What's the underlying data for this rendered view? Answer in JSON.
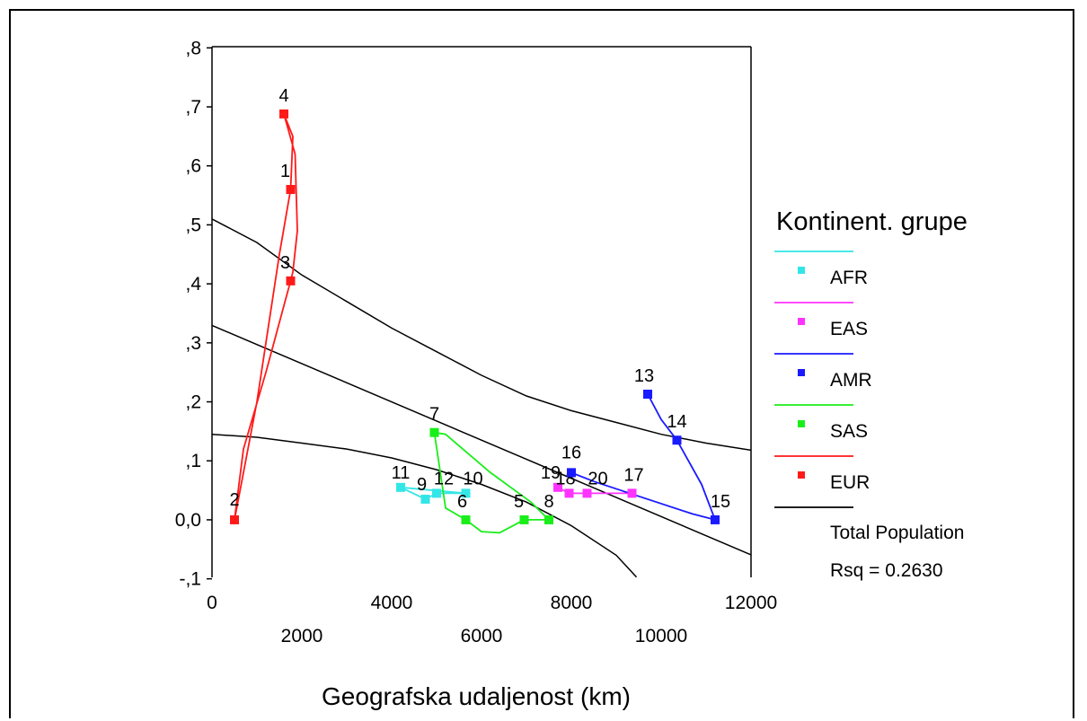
{
  "chart_data": {
    "type": "scatter",
    "xlabel": "Geografska udaljenost (km)",
    "ylabel": "",
    "xlim": [
      0,
      12000
    ],
    "ylim": [
      -0.1,
      0.8
    ],
    "xticks_top_row": [
      "0",
      "4000",
      "8000",
      "12000"
    ],
    "xticks_bottom_row": [
      "2000",
      "6000",
      "10000"
    ],
    "yticks": [
      {
        "value": 0.8,
        "label": ",8"
      },
      {
        "value": 0.7,
        "label": ",7"
      },
      {
        "value": 0.6,
        "label": ",6"
      },
      {
        "value": 0.5,
        "label": ",5"
      },
      {
        "value": 0.4,
        "label": ",4"
      },
      {
        "value": 0.3,
        "label": ",3"
      },
      {
        "value": 0.2,
        "label": ",2"
      },
      {
        "value": 0.1,
        "label": ",1"
      },
      {
        "value": 0.0,
        "label": "0,0"
      },
      {
        "value": -0.1,
        "label": "-,1"
      }
    ],
    "legend_title": "Kontinent. grupe",
    "legend_position": "right",
    "series": [
      {
        "name": "AFR",
        "color": "#33e6e6",
        "points": [
          {
            "label": "11",
            "x": 4200,
            "y": 0.055
          },
          {
            "label": "9",
            "x": 4750,
            "y": 0.035
          },
          {
            "label": "12",
            "x": 5000,
            "y": 0.045
          },
          {
            "label": "10",
            "x": 5650,
            "y": 0.045
          }
        ]
      },
      {
        "name": "EAS",
        "color": "#ff33ff",
        "points": [
          {
            "label": "19",
            "x": 7700,
            "y": 0.055
          },
          {
            "label": "18",
            "x": 7950,
            "y": 0.045
          },
          {
            "label": "20",
            "x": 8350,
            "y": 0.045
          },
          {
            "label": "17",
            "x": 9350,
            "y": 0.045
          }
        ]
      },
      {
        "name": "AMR",
        "color": "#1a1aff",
        "points": [
          {
            "label": "13",
            "x": 9700,
            "y": 0.213
          },
          {
            "label": "14",
            "x": 10350,
            "y": 0.135
          },
          {
            "label": "15",
            "x": 11200,
            "y": 0.0
          },
          {
            "label": "16",
            "x": 8000,
            "y": 0.08
          }
        ]
      },
      {
        "name": "SAS",
        "color": "#1aee1a",
        "points": [
          {
            "label": "7",
            "x": 4950,
            "y": 0.148
          },
          {
            "label": "6",
            "x": 5650,
            "y": 0.0
          },
          {
            "label": "5",
            "x": 6950,
            "y": 0.0
          },
          {
            "label": "8",
            "x": 7500,
            "y": 0.0
          }
        ]
      },
      {
        "name": "EUR",
        "color": "#ff1a1a",
        "points": [
          {
            "label": "4",
            "x": 1600,
            "y": 0.688
          },
          {
            "label": "1",
            "x": 1750,
            "y": 0.56
          },
          {
            "label": "3",
            "x": 1750,
            "y": 0.405
          },
          {
            "label": "2",
            "x": 500,
            "y": 0.0
          }
        ]
      }
    ],
    "fit": {
      "name": "Total Population",
      "rsq_label": "Rsq = 0.2630",
      "color": "#000000"
    }
  }
}
